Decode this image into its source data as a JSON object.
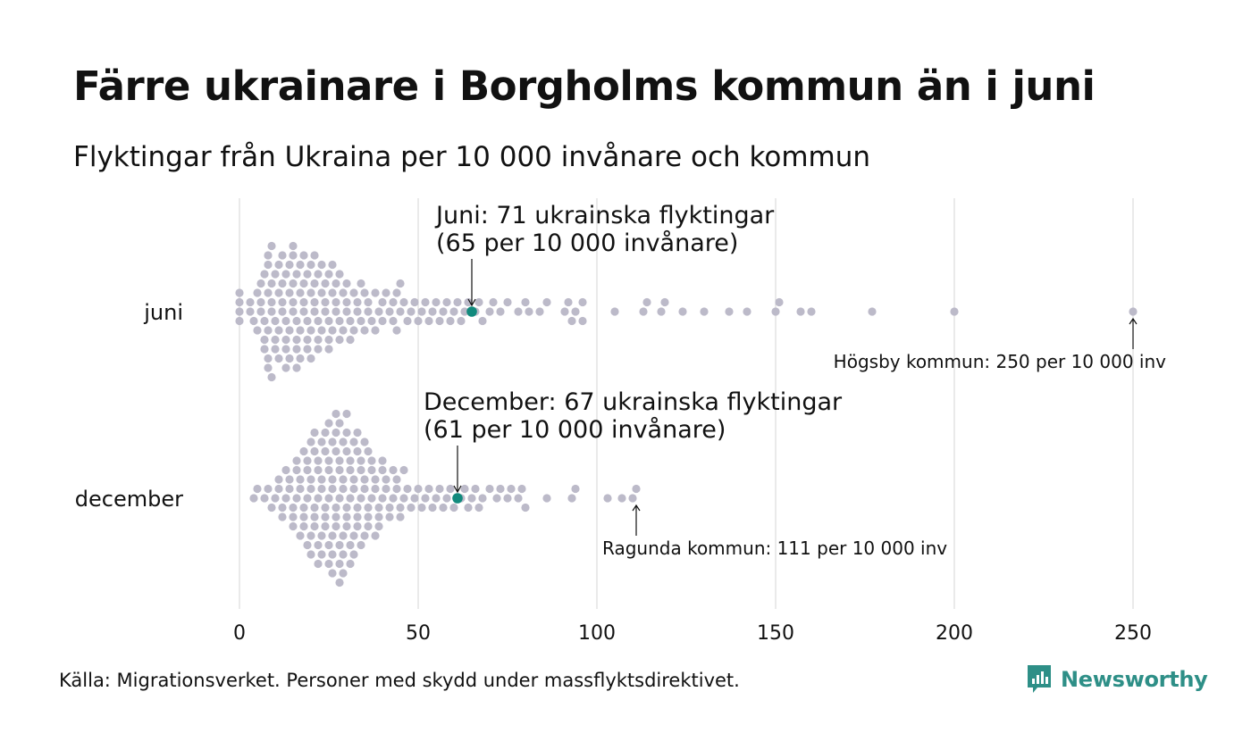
{
  "title": "Färre ukrainare i Borgholms kommun än i juni",
  "subtitle": "Flyktingar från Ukraina per 10 000 invånare och kommun",
  "source": "Källa: Migrationsverket. Personer med skydd under massflyktsdirektivet.",
  "brand": {
    "name": "Newsworthy",
    "color": "#2e8f87"
  },
  "chart_data": {
    "type": "scatter",
    "subtype": "beeswarm",
    "xlim": [
      0,
      250
    ],
    "xticks": [
      0,
      50,
      100,
      150,
      200,
      250
    ],
    "grid": true,
    "colors": {
      "dots": "#bcbac9",
      "highlight": "#128a7d"
    },
    "rows": [
      {
        "label": "juni",
        "highlight": {
          "value": 65,
          "label_line1": "Juni: 71 ukrainska flyktingar",
          "label_line2": "(65 per 10 000 invånare)"
        },
        "max_annotation": {
          "value": 250,
          "label": "Högsby kommun: 250 per 10 000 inv"
        },
        "values": [
          0,
          0,
          0,
          0,
          3,
          3,
          4,
          5,
          5,
          6,
          6,
          6,
          7,
          7,
          7,
          7,
          8,
          8,
          8,
          8,
          8,
          8,
          9,
          9,
          9,
          9,
          9,
          10,
          10,
          10,
          10,
          11,
          11,
          11,
          11,
          12,
          12,
          12,
          12,
          13,
          13,
          13,
          13,
          13,
          14,
          14,
          14,
          14,
          15,
          15,
          15,
          15,
          15,
          16,
          16,
          16,
          16,
          16,
          17,
          17,
          17,
          17,
          18,
          18,
          18,
          18,
          19,
          19,
          19,
          19,
          20,
          20,
          20,
          20,
          21,
          21,
          21,
          21,
          22,
          22,
          22,
          22,
          23,
          23,
          23,
          24,
          24,
          24,
          25,
          25,
          25,
          25,
          26,
          26,
          26,
          27,
          27,
          27,
          28,
          28,
          28,
          29,
          29,
          30,
          30,
          30,
          31,
          31,
          32,
          32,
          33,
          33,
          34,
          34,
          35,
          35,
          36,
          36,
          37,
          38,
          38,
          39,
          40,
          40,
          41,
          42,
          43,
          43,
          44,
          44,
          45,
          45,
          46,
          47,
          48,
          49,
          50,
          51,
          52,
          53,
          54,
          55,
          56,
          57,
          58,
          59,
          60,
          61,
          62,
          63,
          64,
          66,
          67,
          68,
          70,
          71,
          73,
          75,
          78,
          80,
          81,
          84,
          86,
          91,
          92,
          93,
          94,
          96,
          96,
          105,
          113,
          114,
          118,
          119,
          124,
          130,
          137,
          142,
          150,
          151,
          157,
          160,
          177,
          200,
          250
        ]
      },
      {
        "label": "december",
        "highlight": {
          "value": 61,
          "label_line1": "December: 67 ukrainska flyktingar",
          "label_line2": "(61 per 10 000 invånare)"
        },
        "max_annotation": {
          "value": 111,
          "label": "Ragunda kommun: 111 per 10 000 inv"
        },
        "values": [
          4,
          5,
          7,
          8,
          9,
          10,
          11,
          11,
          12,
          12,
          13,
          13,
          14,
          14,
          15,
          15,
          15,
          16,
          16,
          16,
          17,
          17,
          17,
          18,
          18,
          18,
          18,
          19,
          19,
          19,
          19,
          20,
          20,
          20,
          20,
          20,
          21,
          21,
          21,
          21,
          21,
          22,
          22,
          22,
          22,
          22,
          23,
          23,
          23,
          23,
          23,
          24,
          24,
          24,
          24,
          24,
          25,
          25,
          25,
          25,
          25,
          25,
          26,
          26,
          26,
          26,
          26,
          26,
          27,
          27,
          27,
          27,
          27,
          27,
          28,
          28,
          28,
          28,
          28,
          28,
          28,
          29,
          29,
          29,
          29,
          29,
          29,
          30,
          30,
          30,
          30,
          30,
          30,
          31,
          31,
          31,
          31,
          31,
          32,
          32,
          32,
          32,
          32,
          33,
          33,
          33,
          33,
          33,
          34,
          34,
          34,
          34,
          35,
          35,
          35,
          35,
          36,
          36,
          36,
          36,
          37,
          37,
          37,
          38,
          38,
          38,
          39,
          39,
          39,
          40,
          40,
          40,
          41,
          41,
          42,
          42,
          43,
          43,
          44,
          44,
          45,
          45,
          46,
          46,
          47,
          48,
          49,
          50,
          51,
          52,
          53,
          54,
          55,
          56,
          57,
          58,
          59,
          60,
          62,
          63,
          64,
          65,
          66,
          67,
          68,
          70,
          72,
          73,
          75,
          76,
          78,
          79,
          80,
          86,
          93,
          94,
          103,
          107,
          110,
          111
        ]
      }
    ]
  }
}
